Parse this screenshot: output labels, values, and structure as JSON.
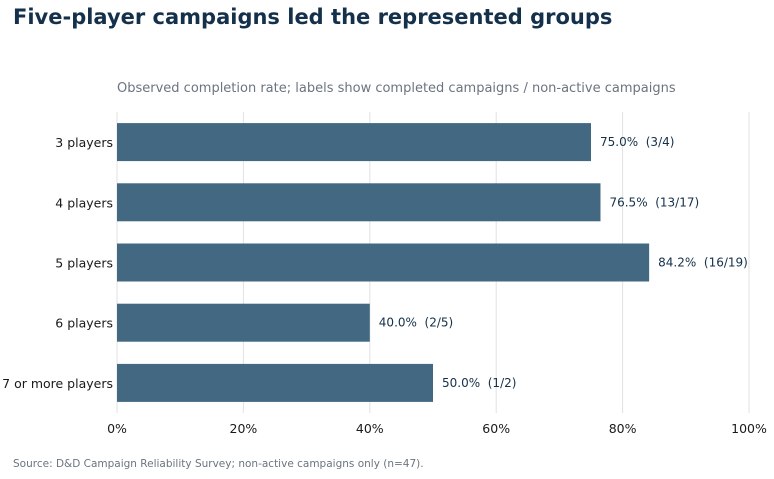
{
  "title": "Five-player campaigns led the represented groups",
  "subtitle": "Observed completion rate; labels show completed campaigns / non-active campaigns",
  "source": "Source: D&D Campaign Reliability Survey; non-active campaigns only (n=47).",
  "colors": {
    "bar": "#426882",
    "grid": "#e2e2e2",
    "title": "#14304a"
  },
  "chart_data": {
    "type": "bar",
    "orientation": "horizontal",
    "title": "Five-player campaigns led the represented groups",
    "subtitle": "Observed completion rate; labels show completed campaigns / non-active campaigns",
    "xlabel": "",
    "ylabel": "",
    "xlim": [
      0,
      100
    ],
    "grid": true,
    "categories": [
      "3 players",
      "4 players",
      "5 players",
      "6 players",
      "7 or more players"
    ],
    "values": [
      75.0,
      76.5,
      84.2,
      40.0,
      50.0
    ],
    "data_labels": [
      "75.0%  (3/4)",
      "76.5%  (13/17)",
      "84.2%  (16/19)",
      "40.0%  (2/5)",
      "50.0%  (1/2)"
    ],
    "x_ticks": [
      0,
      20,
      40,
      60,
      80,
      100
    ],
    "x_tick_labels": [
      "0%",
      "20%",
      "40%",
      "60%",
      "80%",
      "100%"
    ]
  }
}
